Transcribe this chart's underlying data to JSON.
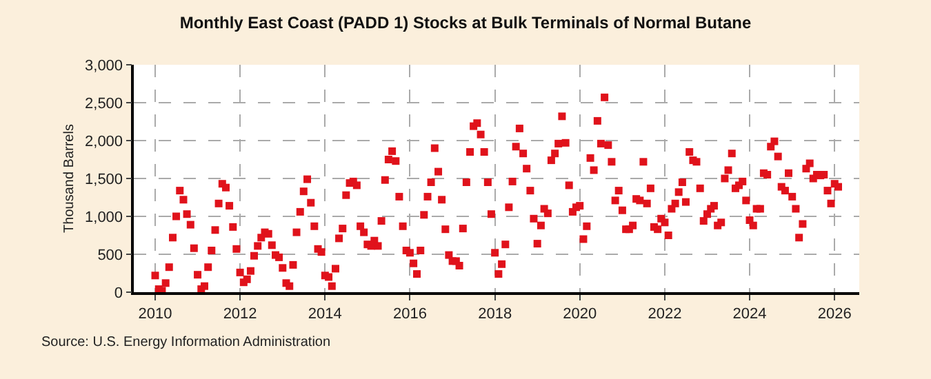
{
  "chart_data": {
    "type": "scatter",
    "title": "Monthly East Coast (PADD 1) Stocks at Bulk Terminals of Normal Butane",
    "ylabel": "Thousand Barrels",
    "annotations": [
      "Source: U.S. Energy Information Administration"
    ],
    "x": [
      "2010-01",
      "2010-02",
      "2010-03",
      "2010-04",
      "2010-05",
      "2010-06",
      "2010-07",
      "2010-08",
      "2010-09",
      "2010-10",
      "2010-11",
      "2010-12",
      "2011-01",
      "2011-02",
      "2011-03",
      "2011-04",
      "2011-05",
      "2011-06",
      "2011-07",
      "2011-08",
      "2011-09",
      "2011-10",
      "2011-11",
      "2011-12",
      "2012-01",
      "2012-02",
      "2012-03",
      "2012-04",
      "2012-05",
      "2012-06",
      "2012-07",
      "2012-08",
      "2012-09",
      "2012-10",
      "2012-11",
      "2012-12",
      "2013-01",
      "2013-02",
      "2013-03",
      "2013-04",
      "2013-05",
      "2013-06",
      "2013-07",
      "2013-08",
      "2013-09",
      "2013-10",
      "2013-11",
      "2013-12",
      "2014-01",
      "2014-02",
      "2014-03",
      "2014-04",
      "2014-05",
      "2014-06",
      "2014-07",
      "2014-08",
      "2014-09",
      "2014-10",
      "2014-11",
      "2014-12",
      "2015-01",
      "2015-02",
      "2015-03",
      "2015-04",
      "2015-05",
      "2015-06",
      "2015-07",
      "2015-08",
      "2015-09",
      "2015-10",
      "2015-11",
      "2015-12",
      "2016-01",
      "2016-02",
      "2016-03",
      "2016-04",
      "2016-05",
      "2016-06",
      "2016-07",
      "2016-08",
      "2016-09",
      "2016-10",
      "2016-11",
      "2016-12",
      "2017-01",
      "2017-02",
      "2017-03",
      "2017-04",
      "2017-05",
      "2017-06",
      "2017-07",
      "2017-08",
      "2017-09",
      "2017-10",
      "2017-11",
      "2017-12",
      "2018-01",
      "2018-02",
      "2018-03",
      "2018-04",
      "2018-05",
      "2018-06",
      "2018-07",
      "2018-08",
      "2018-09",
      "2018-10",
      "2018-11",
      "2018-12",
      "2019-01",
      "2019-02",
      "2019-03",
      "2019-04",
      "2019-05",
      "2019-06",
      "2019-07",
      "2019-08",
      "2019-09",
      "2019-10",
      "2019-11",
      "2019-12",
      "2020-01",
      "2020-02",
      "2020-03",
      "2020-04",
      "2020-05",
      "2020-06",
      "2020-07",
      "2020-08",
      "2020-09",
      "2020-10",
      "2020-11",
      "2020-12",
      "2021-01",
      "2021-02",
      "2021-03",
      "2021-04",
      "2021-05",
      "2021-06",
      "2021-07",
      "2021-08",
      "2021-09",
      "2021-10",
      "2021-11",
      "2021-12",
      "2022-01",
      "2022-02",
      "2022-03",
      "2022-04",
      "2022-05",
      "2022-06",
      "2022-07",
      "2022-08",
      "2022-09",
      "2022-10",
      "2022-11",
      "2022-12",
      "2023-01",
      "2023-02",
      "2023-03",
      "2023-04",
      "2023-05",
      "2023-06",
      "2023-07",
      "2023-08",
      "2023-09",
      "2023-10",
      "2023-11",
      "2023-12",
      "2024-01",
      "2024-02",
      "2024-03",
      "2024-04",
      "2024-05",
      "2024-06",
      "2024-07",
      "2024-08",
      "2024-09",
      "2024-10",
      "2024-11",
      "2024-12",
      "2025-01",
      "2025-02",
      "2025-03",
      "2025-04",
      "2025-05",
      "2025-06",
      "2025-07",
      "2025-08",
      "2025-09",
      "2025-10",
      "2025-11",
      "2025-12",
      "2026-01",
      "2026-02"
    ],
    "series": [
      {
        "color": "#e0121b",
        "values": [
          220,
          40,
          20,
          120,
          330,
          720,
          1000,
          1340,
          1220,
          1030,
          890,
          580,
          230,
          40,
          80,
          330,
          550,
          820,
          1170,
          1430,
          1380,
          1140,
          860,
          570,
          260,
          130,
          170,
          280,
          480,
          610,
          720,
          790,
          770,
          620,
          490,
          460,
          320,
          120,
          80,
          360,
          790,
          1060,
          1330,
          1490,
          1180,
          870,
          570,
          530,
          220,
          200,
          80,
          310,
          710,
          840,
          1280,
          1440,
          1460,
          1410,
          870,
          790,
          630,
          610,
          680,
          610,
          940,
          1480,
          1750,
          1860,
          1730,
          1260,
          870,
          550,
          520,
          380,
          240,
          550,
          1020,
          1260,
          1450,
          1900,
          1590,
          1220,
          830,
          490,
          410,
          410,
          350,
          840,
          1450,
          1850,
          2190,
          2230,
          2080,
          1850,
          1450,
          1030,
          520,
          240,
          370,
          630,
          1120,
          1460,
          1920,
          2160,
          1830,
          1630,
          1340,
          970,
          640,
          880,
          1100,
          1040,
          1740,
          1830,
          1960,
          2320,
          1970,
          1410,
          1060,
          1120,
          1140,
          700,
          870,
          1770,
          1610,
          2260,
          1960,
          2570,
          1940,
          1720,
          1210,
          1340,
          1080,
          830,
          830,
          880,
          1230,
          1210,
          1720,
          1170,
          1370,
          860,
          830,
          970,
          920,
          750,
          1100,
          1170,
          1320,
          1450,
          1190,
          1850,
          1740,
          1720,
          1370,
          940,
          1030,
          1100,
          1140,
          880,
          920,
          1500,
          1610,
          1830,
          1370,
          1410,
          1460,
          1210,
          950,
          880,
          1100,
          1100,
          1570,
          1550,
          1920,
          1990,
          1790,
          1390,
          1340,
          1570,
          1260,
          1100,
          720,
          900,
          1630,
          1700,
          1500,
          1550,
          1540,
          1550,
          1340,
          1170,
          1430,
          1390
        ]
      }
    ],
    "xlim": [
      "2009-07",
      "2026-08"
    ],
    "xticks": [
      "2010",
      "2012",
      "2014",
      "2016",
      "2018",
      "2020",
      "2022",
      "2024",
      "2026"
    ],
    "ylim": [
      0,
      3000
    ],
    "yticks": [
      0,
      500,
      {
        "value": 1000,
        "label": "1,000"
      },
      {
        "value": 1500,
        "label": "1,500"
      },
      {
        "value": 2000,
        "label": "2,000"
      },
      {
        "value": 2500,
        "label": "2,500"
      },
      {
        "value": 3000,
        "label": "3,000"
      }
    ],
    "grid": true,
    "marker": "square"
  }
}
